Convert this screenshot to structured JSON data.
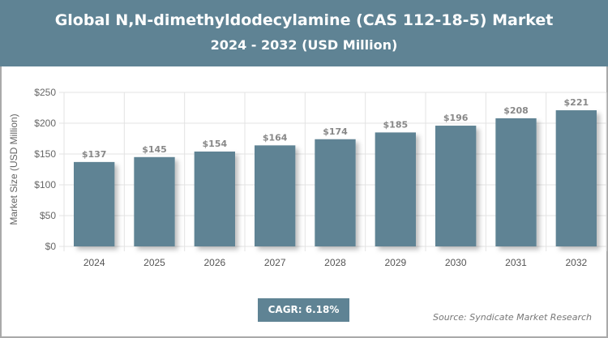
{
  "header": {
    "title": "Global N,N-dimethyldodecylamine (CAS 112-18-5) Market",
    "subtitle": "2024 - 2032 (USD Million)"
  },
  "footer": {
    "cagr": "CAGR: 6.18%",
    "source": "Source: Syndicate Market Research"
  },
  "colors": {
    "bar": "#5f8394",
    "header": "#5f8394"
  },
  "chart_data": {
    "type": "bar",
    "title": "Global N,N-dimethyldodecylamine (CAS 112-18-5) Market",
    "subtitle": "2024 - 2032 (USD Million)",
    "xlabel": "",
    "ylabel": "Market Size (USD Million)",
    "categories": [
      "2024",
      "2025",
      "2026",
      "2027",
      "2028",
      "2029",
      "2030",
      "2031",
      "2032"
    ],
    "values": [
      137,
      145,
      154,
      164,
      174,
      185,
      196,
      208,
      221
    ],
    "data_labels": [
      "$137",
      "$145",
      "$154",
      "$164",
      "$174",
      "$185",
      "$196",
      "$208",
      "$221"
    ],
    "ylim": [
      0,
      250
    ],
    "yticks": [
      0,
      50,
      100,
      150,
      200,
      250
    ],
    "ytick_labels": [
      "$0",
      "$50",
      "$100",
      "$150",
      "$200",
      "$250"
    ],
    "grid": true
  }
}
